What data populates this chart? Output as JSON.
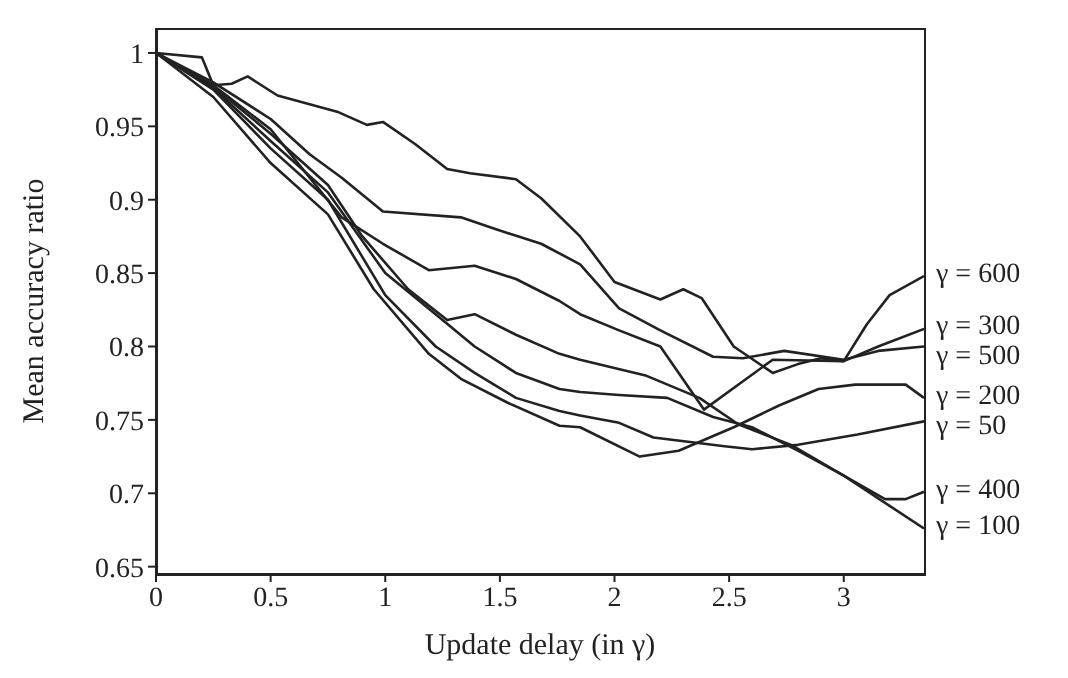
{
  "chart_data": {
    "type": "line",
    "xlabel": "Update delay (in γ)",
    "ylabel": "Mean accuracy ratio",
    "xlim": [
      0,
      3.35
    ],
    "xticks": [
      0,
      0.5,
      1,
      1.5,
      2,
      2.5,
      3
    ],
    "ylim": [
      0.645,
      1.017
    ],
    "yticks": [
      0.65,
      0.7,
      0.75,
      0.8,
      0.85,
      0.9,
      0.95,
      1
    ],
    "marker": "none",
    "series": [
      {
        "name": "γ = 600",
        "color": "#222222",
        "x": [
          0,
          0.2,
          0.25,
          0.33,
          0.4,
          0.53,
          0.79,
          0.92,
          0.99,
          1.13,
          1.27,
          1.37,
          1.57,
          1.68,
          1.85,
          2.0,
          2.2,
          2.3,
          2.38,
          2.52,
          2.69,
          2.8,
          2.9,
          3.0,
          3.1,
          3.2,
          3.35
        ],
        "values": [
          1,
          0.997,
          0.978,
          0.979,
          0.984,
          0.971,
          0.96,
          0.951,
          0.953,
          0.938,
          0.921,
          0.918,
          0.914,
          0.901,
          0.875,
          0.844,
          0.832,
          0.839,
          0.833,
          0.8,
          0.782,
          0.788,
          0.792,
          0.79,
          0.815,
          0.835,
          0.848
        ]
      },
      {
        "name": "γ = 500",
        "color": "#222222",
        "x": [
          0,
          0.25,
          0.5,
          0.67,
          0.81,
          0.99,
          1.33,
          1.48,
          1.68,
          1.85,
          2.02,
          2.2,
          2.43,
          2.56,
          2.74,
          3.0,
          3.15,
          3.35
        ],
        "values": [
          1,
          0.98,
          0.955,
          0.931,
          0.915,
          0.892,
          0.888,
          0.88,
          0.87,
          0.856,
          0.826,
          0.811,
          0.793,
          0.792,
          0.797,
          0.791,
          0.797,
          0.8
        ]
      },
      {
        "name": "γ = 300",
        "color": "#222222",
        "x": [
          0,
          0.25,
          0.5,
          0.81,
          0.99,
          1.19,
          1.39,
          1.57,
          1.76,
          1.85,
          2.02,
          2.2,
          2.39,
          2.69,
          3.0,
          3.15,
          3.35
        ],
        "values": [
          1,
          0.978,
          0.948,
          0.888,
          0.87,
          0.852,
          0.855,
          0.846,
          0.831,
          0.822,
          0.811,
          0.8,
          0.757,
          0.791,
          0.79,
          0.8,
          0.812
        ]
      },
      {
        "name": "γ = 400",
        "color": "#222222",
        "x": [
          0,
          0.25,
          0.5,
          0.75,
          0.9,
          1.1,
          1.27,
          1.39,
          1.57,
          1.76,
          1.85,
          2.14,
          2.37,
          2.54,
          2.77,
          3.0,
          3.18,
          3.27,
          3.35
        ],
        "values": [
          1,
          0.977,
          0.945,
          0.91,
          0.875,
          0.839,
          0.818,
          0.822,
          0.808,
          0.795,
          0.791,
          0.78,
          0.765,
          0.747,
          0.733,
          0.712,
          0.696,
          0.696,
          0.701
        ]
      },
      {
        "name": "γ = 100",
        "color": "#222222",
        "x": [
          0,
          0.25,
          0.5,
          0.75,
          1.0,
          1.25,
          1.39,
          1.57,
          1.76,
          1.85,
          2.02,
          2.23,
          2.43,
          2.6,
          2.8,
          3.0,
          3.35
        ],
        "values": [
          1,
          0.976,
          0.94,
          0.905,
          0.85,
          0.818,
          0.8,
          0.782,
          0.771,
          0.769,
          0.767,
          0.765,
          0.752,
          0.745,
          0.729,
          0.712,
          0.676
        ]
      },
      {
        "name": "γ = 50",
        "color": "#222222",
        "x": [
          0,
          0.25,
          0.5,
          0.75,
          1.0,
          1.22,
          1.39,
          1.57,
          1.76,
          1.85,
          2.02,
          2.17,
          2.48,
          2.6,
          2.8,
          3.06,
          3.35
        ],
        "values": [
          1,
          0.975,
          0.935,
          0.9,
          0.835,
          0.8,
          0.782,
          0.765,
          0.756,
          0.753,
          0.748,
          0.738,
          0.732,
          0.73,
          0.733,
          0.74,
          0.749
        ]
      },
      {
        "name": "γ = 200",
        "color": "#222222",
        "x": [
          0,
          0.25,
          0.5,
          0.75,
          0.95,
          1.19,
          1.33,
          1.53,
          1.76,
          1.85,
          2.11,
          2.28,
          2.52,
          2.72,
          2.89,
          3.05,
          3.27,
          3.35
        ],
        "values": [
          1,
          0.97,
          0.925,
          0.89,
          0.839,
          0.795,
          0.778,
          0.762,
          0.746,
          0.745,
          0.725,
          0.729,
          0.745,
          0.76,
          0.771,
          0.774,
          0.774,
          0.765
        ]
      }
    ]
  }
}
